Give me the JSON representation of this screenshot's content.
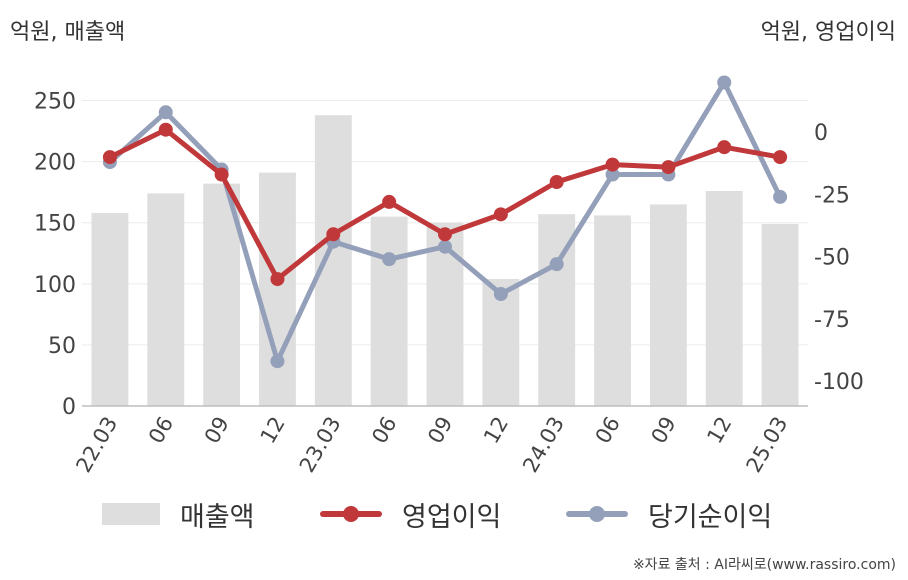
{
  "units": {
    "left": "억원, 매출액",
    "right": "억원, 영업이익"
  },
  "legend": {
    "revenue": "매출액",
    "operating": "영업이익",
    "net": "당기순이익"
  },
  "source": "※자료 출처 : AI라씨로(www.rassiro.com)",
  "colors": {
    "bar": "#dedede",
    "operating": "#c0383a",
    "net": "#94a0b9",
    "grid": "#ececec",
    "axis": "#bdbdbd"
  },
  "chart_data": {
    "type": "bar",
    "categories": [
      "22.03",
      "06",
      "09",
      "12",
      "23.03",
      "06",
      "09",
      "12",
      "24.03",
      "06",
      "09",
      "12",
      "25.03"
    ],
    "left_axis": {
      "ylim": [
        0,
        275
      ],
      "ticks": [
        0,
        50,
        100,
        150,
        200,
        250
      ]
    },
    "right_axis": {
      "ylim": [
        -110,
        25
      ],
      "ticks": [
        -100,
        -75,
        -50,
        -25,
        0
      ]
    },
    "series": [
      {
        "name": "매출액",
        "kind": "bar",
        "axis": "left",
        "values": [
          158,
          174,
          182,
          191,
          238,
          155,
          150,
          104,
          157,
          156,
          165,
          176,
          149
        ]
      },
      {
        "name": "영업이익",
        "kind": "line",
        "axis": "right",
        "values": [
          -10,
          1,
          -17,
          -59,
          -41,
          -28,
          -41,
          -33,
          -20,
          -13,
          -14,
          -6,
          -10
        ]
      },
      {
        "name": "당기순이익",
        "kind": "line",
        "axis": "right",
        "values": [
          -12,
          8,
          -15,
          -92,
          -44,
          -51,
          -46,
          -65,
          -53,
          -17,
          -17,
          20,
          -26
        ]
      }
    ]
  }
}
